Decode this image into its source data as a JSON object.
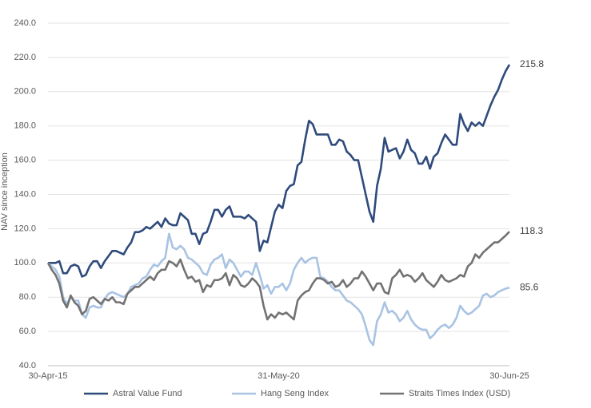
{
  "chart_data": {
    "type": "line",
    "y_label": "NAV since inception",
    "categories": [
      "30-Apr-15",
      null,
      null,
      null,
      null,
      null,
      null,
      null,
      null,
      null,
      null,
      null,
      null,
      null,
      null,
      null,
      null,
      null,
      null,
      null,
      null,
      null,
      null,
      null,
      null,
      null,
      null,
      null,
      null,
      null,
      null,
      null,
      null,
      null,
      null,
      null,
      null,
      null,
      null,
      null,
      null,
      null,
      null,
      null,
      null,
      null,
      null,
      null,
      null,
      null,
      null,
      null,
      null,
      null,
      null,
      null,
      null,
      null,
      null,
      null,
      null,
      "31-May-20",
      null,
      null,
      null,
      null,
      null,
      null,
      null,
      null,
      null,
      null,
      null,
      null,
      null,
      null,
      null,
      null,
      null,
      null,
      null,
      null,
      null,
      null,
      null,
      null,
      null,
      null,
      null,
      null,
      null,
      null,
      null,
      null,
      null,
      null,
      null,
      null,
      null,
      null,
      null,
      null,
      null,
      null,
      null,
      null,
      null,
      null,
      null,
      null,
      null,
      null,
      null,
      null,
      null,
      null,
      null,
      null,
      null,
      null,
      null,
      null,
      "30-Jun-25"
    ],
    "series": [
      {
        "name": "Astral Value Fund",
        "color": "#2f4b7c",
        "values": [
          100,
          100,
          100,
          101,
          94,
          94,
          98,
          99,
          98,
          92,
          93,
          98,
          101,
          101,
          97,
          101,
          104,
          107,
          107,
          106,
          105,
          109,
          112,
          118,
          118,
          119,
          121,
          120,
          122,
          124,
          121,
          126,
          123,
          122,
          122,
          129,
          127,
          125,
          117,
          117,
          111,
          117,
          118,
          124,
          131,
          131,
          127,
          131,
          133,
          127,
          127,
          127,
          126,
          128,
          126,
          124,
          107,
          113,
          112,
          121,
          130,
          134,
          132,
          142,
          145,
          146,
          157,
          159,
          172,
          183,
          181,
          175,
          175,
          175,
          175,
          169,
          169,
          172,
          171,
          165,
          163,
          160,
          160,
          150,
          140,
          130,
          124,
          145,
          155,
          173,
          165,
          166,
          167,
          161,
          165,
          172,
          166,
          164,
          158,
          158,
          162,
          155,
          162,
          164,
          170,
          175,
          172,
          169,
          169,
          187,
          181,
          177,
          182,
          180,
          182,
          180,
          186,
          192,
          197,
          201,
          207,
          212,
          215.8
        ]
      },
      {
        "name": "Hang Seng Index",
        "color": "#a9c3e3",
        "values": [
          100,
          98,
          96,
          92,
          80,
          76,
          80,
          78,
          78,
          70,
          68,
          74,
          75,
          74,
          74,
          79,
          82,
          83,
          82,
          81,
          80,
          82,
          86,
          87,
          88,
          91,
          92,
          96,
          99,
          98,
          101,
          103,
          117,
          109,
          108,
          110,
          108,
          103,
          102,
          100,
          98,
          94,
          93,
          99,
          102,
          103,
          105,
          97,
          102,
          100,
          96,
          92,
          95,
          95,
          93,
          100,
          93,
          85,
          87,
          82,
          86,
          86,
          88,
          84,
          88,
          96,
          100,
          103,
          100,
          102,
          103,
          103,
          92,
          91,
          89,
          86,
          84,
          84,
          81,
          78,
          77,
          75,
          73,
          70,
          63,
          55,
          52,
          66,
          70,
          77,
          71,
          72,
          70,
          66,
          68,
          72,
          67,
          64,
          62,
          61,
          61,
          56,
          58,
          61,
          63,
          64,
          62,
          64,
          68,
          75,
          72,
          70,
          71,
          73,
          75,
          81,
          82,
          80,
          81,
          83,
          84,
          85,
          85.6
        ]
      },
      {
        "name": "Straits Times Index (USD)",
        "color": "#727272",
        "values": [
          100,
          96,
          93,
          88,
          78,
          74,
          81,
          77,
          75,
          70,
          72,
          79,
          80,
          78,
          76,
          79,
          78,
          80,
          77,
          77,
          76,
          82,
          84,
          86,
          86,
          88,
          90,
          92,
          90,
          94,
          96,
          96,
          101,
          100,
          98,
          102,
          96,
          91,
          92,
          89,
          90,
          83,
          87,
          86,
          90,
          90,
          91,
          94,
          87,
          93,
          91,
          87,
          86,
          88,
          91,
          89,
          86,
          75,
          67,
          70,
          68,
          71,
          70,
          71,
          69,
          67,
          78,
          81,
          83,
          84,
          88,
          91,
          91,
          90,
          88,
          89,
          86,
          87,
          90,
          86,
          88,
          91,
          91,
          95,
          92,
          88,
          84,
          88,
          88,
          83,
          82,
          91,
          93,
          96,
          92,
          93,
          92,
          89,
          91,
          94,
          90,
          88,
          86,
          89,
          93,
          90,
          89,
          90,
          91,
          93,
          92,
          98,
          100,
          105,
          103,
          106,
          108,
          110,
          112,
          112,
          114,
          116,
          118.3
        ]
      }
    ],
    "ylim": [
      40,
      240
    ],
    "yticks": [
      {
        "value": 40,
        "label": "40.0"
      },
      {
        "value": 60,
        "label": "60.0"
      },
      {
        "value": 80,
        "label": "80.0"
      },
      {
        "value": 100,
        "label": "100.0"
      },
      {
        "value": 120,
        "label": "120.0"
      },
      {
        "value": 140,
        "label": "140.0"
      },
      {
        "value": 160,
        "label": "160.0"
      },
      {
        "value": 180,
        "label": "180.0"
      },
      {
        "value": 200,
        "label": "200.0"
      },
      {
        "value": 220,
        "label": "220.0"
      },
      {
        "value": 240,
        "label": "240.0"
      }
    ],
    "grid": true,
    "legend": "bottom"
  }
}
